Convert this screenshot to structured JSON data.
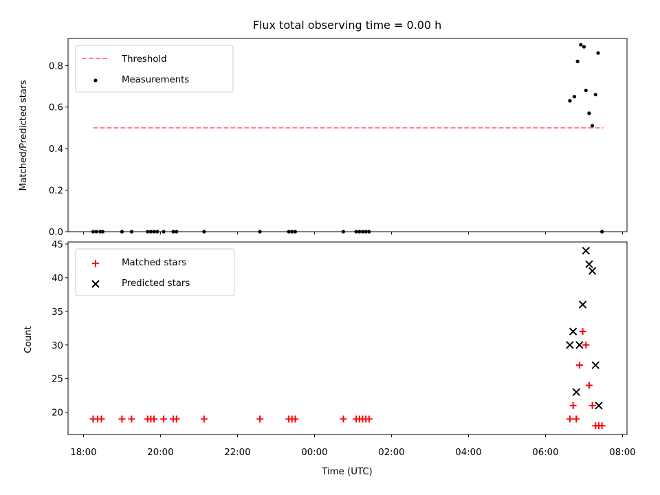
{
  "chart_data": [
    {
      "type": "scatter",
      "title": "Flux total observing time = 0.00 h",
      "xlabel": "",
      "ylabel": "Matched/Predicted stars",
      "ylim": [
        0,
        0.93
      ],
      "yticks": [
        "0.0",
        "0.2",
        "0.4",
        "0.6",
        "0.8"
      ],
      "legend_placement": "upper-left",
      "threshold": {
        "name": "Threshold",
        "value": 0.5,
        "x_start": "18:15",
        "x_end": "07:30",
        "color": "#ff7f7f",
        "style": "dashed"
      },
      "series": [
        {
          "name": "Measurements",
          "color": "#000000",
          "marker": "dot",
          "points": [
            [
              "18:15",
              0.0
            ],
            [
              "18:20",
              0.0
            ],
            [
              "18:26",
              0.0
            ],
            [
              "18:30",
              0.0
            ],
            [
              "19:00",
              0.0
            ],
            [
              "19:15",
              0.0
            ],
            [
              "19:40",
              0.0
            ],
            [
              "19:45",
              0.0
            ],
            [
              "19:50",
              0.0
            ],
            [
              "19:55",
              0.0
            ],
            [
              "20:05",
              0.0
            ],
            [
              "20:20",
              0.0
            ],
            [
              "20:25",
              0.0
            ],
            [
              "21:08",
              0.0
            ],
            [
              "22:35",
              0.0
            ],
            [
              "23:20",
              0.0
            ],
            [
              "23:25",
              0.0
            ],
            [
              "23:30",
              0.0
            ],
            [
              "00:45",
              0.0
            ],
            [
              "01:05",
              0.0
            ],
            [
              "01:10",
              0.0
            ],
            [
              "01:15",
              0.0
            ],
            [
              "01:20",
              0.0
            ],
            [
              "01:25",
              0.0
            ],
            [
              "06:38",
              0.63
            ],
            [
              "06:45",
              0.65
            ],
            [
              "06:50",
              0.82
            ],
            [
              "06:55",
              0.9
            ],
            [
              "07:00",
              0.89
            ],
            [
              "07:03",
              0.68
            ],
            [
              "07:08",
              0.57
            ],
            [
              "07:13",
              0.51
            ],
            [
              "07:18",
              0.66
            ],
            [
              "07:22",
              0.86
            ],
            [
              "07:28",
              0.0
            ]
          ]
        }
      ]
    },
    {
      "type": "scatter",
      "title": "",
      "xlabel": "Time (UTC)",
      "ylabel": "Count",
      "ylim": [
        16.7,
        45.3
      ],
      "yticks": [
        "20",
        "25",
        "30",
        "35",
        "40",
        "45"
      ],
      "xticks": [
        "18:00",
        "20:00",
        "22:00",
        "00:00",
        "02:00",
        "04:00",
        "06:00",
        "08:00"
      ],
      "x_range": [
        "17:36",
        "08:07"
      ],
      "legend_placement": "upper-left",
      "series": [
        {
          "name": "Matched stars",
          "color": "#ff0000",
          "marker": "plus",
          "points": [
            [
              "18:15",
              19
            ],
            [
              "18:22",
              19
            ],
            [
              "18:28",
              19
            ],
            [
              "19:00",
              19
            ],
            [
              "19:15",
              19
            ],
            [
              "19:40",
              19
            ],
            [
              "19:45",
              19
            ],
            [
              "19:50",
              19
            ],
            [
              "20:05",
              19
            ],
            [
              "20:20",
              19
            ],
            [
              "20:25",
              19
            ],
            [
              "21:08",
              19
            ],
            [
              "22:35",
              19
            ],
            [
              "23:20",
              19
            ],
            [
              "23:25",
              19
            ],
            [
              "23:30",
              19
            ],
            [
              "00:45",
              19
            ],
            [
              "01:05",
              19
            ],
            [
              "01:10",
              19
            ],
            [
              "01:15",
              19
            ],
            [
              "01:20",
              19
            ],
            [
              "01:25",
              19
            ],
            [
              "06:38",
              19
            ],
            [
              "06:43",
              21
            ],
            [
              "06:48",
              19
            ],
            [
              "06:53",
              27
            ],
            [
              "06:58",
              32
            ],
            [
              "07:03",
              30
            ],
            [
              "07:08",
              24
            ],
            [
              "07:13",
              21
            ],
            [
              "07:18",
              18
            ],
            [
              "07:23",
              18
            ],
            [
              "07:28",
              18
            ]
          ]
        },
        {
          "name": "Predicted stars",
          "color": "#000000",
          "marker": "x",
          "points": [
            [
              "06:38",
              30
            ],
            [
              "06:43",
              32
            ],
            [
              "06:48",
              23
            ],
            [
              "06:53",
              30
            ],
            [
              "06:58",
              36
            ],
            [
              "07:03",
              44
            ],
            [
              "07:08",
              42
            ],
            [
              "07:13",
              41
            ],
            [
              "07:18",
              27
            ],
            [
              "07:23",
              21
            ]
          ]
        }
      ]
    }
  ]
}
